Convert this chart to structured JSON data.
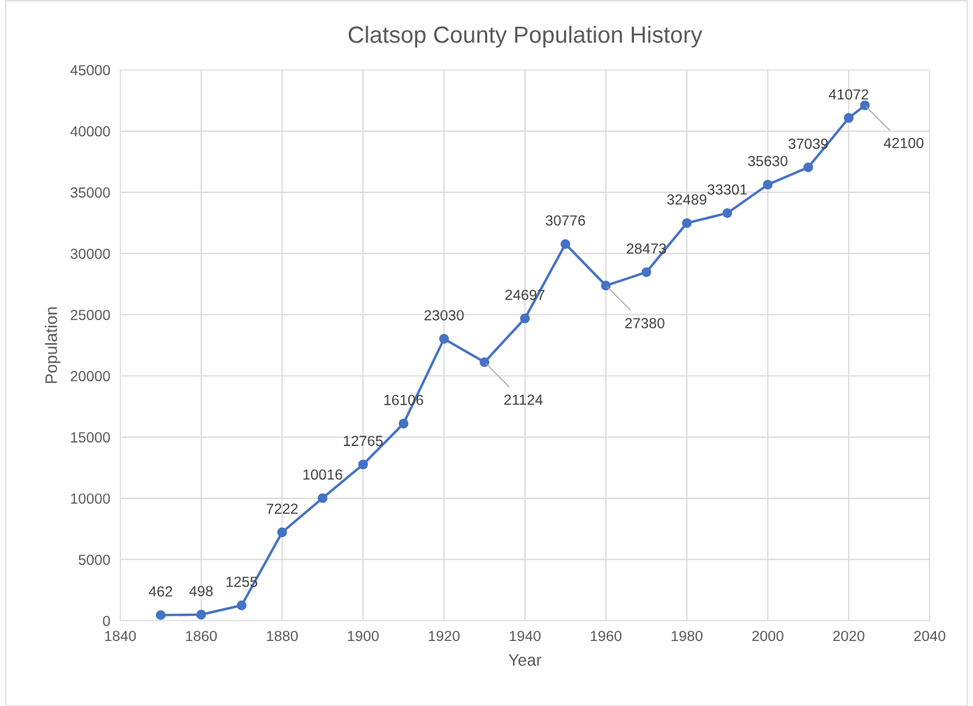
{
  "chart_data": {
    "type": "line",
    "title": "Clatsop County Population History",
    "xlabel": "Year",
    "ylabel": "Population",
    "x": [
      1850,
      1860,
      1870,
      1880,
      1890,
      1900,
      1910,
      1920,
      1930,
      1940,
      1950,
      1960,
      1970,
      1980,
      1990,
      2000,
      2010,
      2020,
      2024
    ],
    "series": [
      {
        "color": "#4472c4",
        "values": [
          462,
          498,
          1255,
          7222,
          10016,
          12765,
          16106,
          23030,
          21124,
          24697,
          30776,
          27380,
          28473,
          32489,
          33301,
          35630,
          37039,
          41072,
          42100
        ]
      }
    ],
    "xlim": [
      1840,
      2040
    ],
    "xticks": [
      1840,
      1860,
      1880,
      1900,
      1920,
      1940,
      1960,
      1980,
      2000,
      2020,
      2040
    ],
    "ylim": [
      0,
      45000
    ],
    "yticks": [
      0,
      5000,
      10000,
      15000,
      20000,
      25000,
      30000,
      35000,
      40000,
      45000
    ],
    "grid": true,
    "marker": "circle",
    "line_style": "solid",
    "data_labels": true,
    "legend": false
  }
}
